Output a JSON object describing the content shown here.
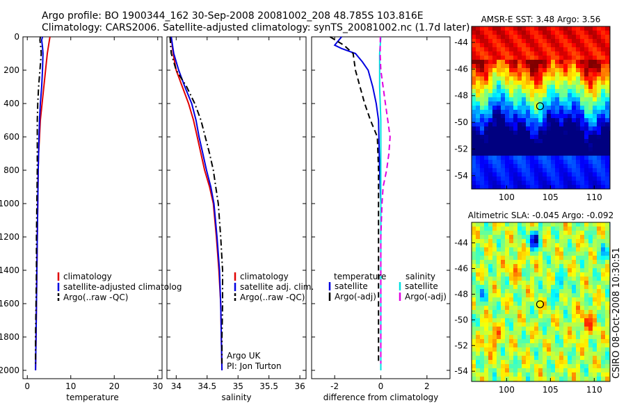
{
  "header": {
    "line1": "Argo profile: BO 1900344_162 30-Sep-2008 20081002_208 48.785S 103.816E",
    "line2": "Climatology: CARS2006. Satellite-adjusted climatology: synTS_20081002.nc (1.7d later)"
  },
  "side_label": "CSIRO 08-Oct-2008 10:30:51",
  "colors": {
    "climatology": "#e00000",
    "satellite": "#0000e0",
    "argo": "#000000",
    "satellite_salt": "#00e0e0",
    "argo_salt": "#e000e0"
  },
  "chart_data": [
    {
      "type": "line",
      "xlabel": "temperature",
      "xticks": [
        0,
        10,
        20,
        30
      ],
      "yticks": [
        0,
        200,
        400,
        600,
        800,
        1000,
        1200,
        1400,
        1600,
        1800,
        2000
      ],
      "xlim": [
        -1,
        31
      ],
      "ylim": [
        2050,
        0
      ],
      "y_reversed": true,
      "legend": [
        "climatology",
        "satellite-adjusted climatolog",
        "Argo(..raw -QC)"
      ],
      "series": [
        {
          "name": "climatology",
          "color": "#e00000",
          "style": "solid",
          "points": [
            [
              5.2,
              0
            ],
            [
              4.9,
              50
            ],
            [
              4.6,
              100
            ],
            [
              4.2,
              200
            ],
            [
              3.8,
              300
            ],
            [
              3.4,
              400
            ],
            [
              3.0,
              500
            ],
            [
              2.8,
              600
            ],
            [
              2.6,
              700
            ],
            [
              2.5,
              800
            ],
            [
              2.4,
              1000
            ],
            [
              2.3,
              1200
            ],
            [
              2.2,
              1400
            ],
            [
              2.1,
              1600
            ],
            [
              2.0,
              1800
            ],
            [
              1.9,
              2000
            ]
          ]
        },
        {
          "name": "satellite-adjusted climatolog",
          "color": "#0000e0",
          "style": "solid",
          "points": [
            [
              3.5,
              0
            ],
            [
              3.3,
              20
            ],
            [
              3.5,
              60
            ],
            [
              3.6,
              100
            ],
            [
              3.5,
              200
            ],
            [
              3.3,
              300
            ],
            [
              3.0,
              400
            ],
            [
              2.8,
              500
            ],
            [
              2.7,
              600
            ],
            [
              2.6,
              700
            ],
            [
              2.5,
              800
            ],
            [
              2.4,
              1000
            ],
            [
              2.3,
              1200
            ],
            [
              2.2,
              1400
            ],
            [
              2.1,
              1600
            ],
            [
              2.0,
              1800
            ],
            [
              1.9,
              2000
            ]
          ]
        },
        {
          "name": "Argo(..raw -QC)",
          "color": "#000000",
          "style": "dashdot",
          "points": [
            [
              3.0,
              0
            ],
            [
              2.9,
              20
            ],
            [
              3.1,
              60
            ],
            [
              3.2,
              100
            ],
            [
              2.9,
              200
            ],
            [
              2.6,
              300
            ],
            [
              2.4,
              400
            ],
            [
              2.3,
              500
            ],
            [
              2.3,
              600
            ],
            [
              2.3,
              700
            ],
            [
              2.3,
              800
            ],
            [
              2.2,
              1000
            ],
            [
              2.1,
              1200
            ],
            [
              2.1,
              1400
            ],
            [
              2.0,
              1600
            ],
            [
              1.9,
              1800
            ],
            [
              1.9,
              1960
            ]
          ]
        }
      ]
    },
    {
      "type": "line",
      "xlabel": "salinity",
      "xticks": [
        34,
        34.5,
        35,
        35.5,
        36
      ],
      "xlim": [
        33.85,
        36.1
      ],
      "ylim": [
        2050,
        0
      ],
      "y_reversed": true,
      "legend": [
        "climatology",
        "satellite adj. clim.",
        "Argo(..raw -QC)"
      ],
      "annotation": [
        "Argo UK",
        "PI: Jon Turton"
      ],
      "series": [
        {
          "name": "climatology",
          "color": "#e00000",
          "style": "solid",
          "points": [
            [
              33.92,
              0
            ],
            [
              33.95,
              100
            ],
            [
              34.0,
              200
            ],
            [
              34.1,
              300
            ],
            [
              34.2,
              400
            ],
            [
              34.28,
              500
            ],
            [
              34.34,
              600
            ],
            [
              34.4,
              700
            ],
            [
              34.46,
              800
            ],
            [
              34.54,
              900
            ],
            [
              34.6,
              1000
            ],
            [
              34.65,
              1200
            ],
            [
              34.69,
              1400
            ],
            [
              34.72,
              1600
            ],
            [
              34.73,
              1800
            ],
            [
              34.74,
              2000
            ]
          ]
        },
        {
          "name": "satellite adj. clim.",
          "color": "#0000e0",
          "style": "solid",
          "points": [
            [
              33.92,
              0
            ],
            [
              33.96,
              100
            ],
            [
              34.04,
              200
            ],
            [
              34.14,
              300
            ],
            [
              34.25,
              400
            ],
            [
              34.32,
              500
            ],
            [
              34.37,
              600
            ],
            [
              34.43,
              700
            ],
            [
              34.49,
              800
            ],
            [
              34.56,
              900
            ],
            [
              34.61,
              1000
            ],
            [
              34.66,
              1200
            ],
            [
              34.7,
              1400
            ],
            [
              34.72,
              1600
            ],
            [
              34.73,
              1800
            ],
            [
              34.74,
              2000
            ]
          ]
        },
        {
          "name": "Argo(..raw -QC)",
          "color": "#000000",
          "style": "dashdot",
          "points": [
            [
              33.9,
              0
            ],
            [
              33.92,
              100
            ],
            [
              34.0,
              200
            ],
            [
              34.17,
              300
            ],
            [
              34.3,
              400
            ],
            [
              34.4,
              500
            ],
            [
              34.47,
              600
            ],
            [
              34.54,
              700
            ],
            [
              34.6,
              800
            ],
            [
              34.64,
              900
            ],
            [
              34.68,
              1000
            ],
            [
              34.72,
              1200
            ],
            [
              34.75,
              1400
            ],
            [
              34.75,
              1600
            ],
            [
              34.74,
              1800
            ],
            [
              34.74,
              1960
            ]
          ]
        }
      ]
    },
    {
      "type": "line",
      "xlabel": "difference from climatology",
      "xticks": [
        -2,
        0,
        2
      ],
      "xlim": [
        -3.0,
        3.0
      ],
      "ylim": [
        2050,
        0
      ],
      "y_reversed": true,
      "legend_temperature": {
        "title": "temperature",
        "entries": [
          "satellite",
          "Argo(-adj)"
        ]
      },
      "legend_salinity": {
        "title": "salinity",
        "entries": [
          "satellite",
          "Argo(-adj)"
        ]
      },
      "series": [
        {
          "name": "satellite",
          "group": "temperature",
          "color": "#0000e0",
          "style": "solid",
          "points": [
            [
              -1.7,
              0
            ],
            [
              -2.0,
              50
            ],
            [
              -1.7,
              70
            ],
            [
              -1.1,
              100
            ],
            [
              -0.8,
              150
            ],
            [
              -0.55,
              200
            ],
            [
              -0.35,
              300
            ],
            [
              -0.2,
              400
            ],
            [
              -0.1,
              500
            ],
            [
              -0.05,
              800
            ],
            [
              0.0,
              1000
            ],
            [
              0.0,
              1500
            ],
            [
              0.0,
              2000
            ]
          ]
        },
        {
          "name": "Argo(-adj)",
          "group": "temperature",
          "color": "#000000",
          "style": "dashed",
          "points": [
            [
              -2.2,
              0
            ],
            [
              -1.6,
              50
            ],
            [
              -1.2,
              100
            ],
            [
              -1.1,
              200
            ],
            [
              -0.9,
              300
            ],
            [
              -0.7,
              400
            ],
            [
              -0.45,
              500
            ],
            [
              -0.15,
              600
            ],
            [
              -0.1,
              800
            ],
            [
              -0.1,
              1000
            ],
            [
              -0.1,
              1500
            ],
            [
              -0.1,
              1960
            ]
          ]
        },
        {
          "name": "satellite",
          "group": "salinity",
          "color": "#00e0e0",
          "style": "solid",
          "points": [
            [
              0.0,
              0
            ],
            [
              -0.05,
              100
            ],
            [
              -0.05,
              300
            ],
            [
              0.0,
              500
            ],
            [
              0.0,
              800
            ],
            [
              0.0,
              1200
            ],
            [
              0.0,
              2000
            ]
          ]
        },
        {
          "name": "Argo(-adj)",
          "group": "salinity",
          "color": "#e000e0",
          "style": "dashed",
          "points": [
            [
              -0.02,
              0
            ],
            [
              -0.03,
              100
            ],
            [
              0.0,
              200
            ],
            [
              0.1,
              300
            ],
            [
              0.2,
              400
            ],
            [
              0.3,
              500
            ],
            [
              0.4,
              600
            ],
            [
              0.35,
              700
            ],
            [
              0.25,
              800
            ],
            [
              0.1,
              900
            ],
            [
              0.05,
              1000
            ],
            [
              0.0,
              1200
            ],
            [
              0.0,
              1500
            ],
            [
              0.0,
              1960
            ]
          ]
        }
      ]
    },
    {
      "type": "heatmap",
      "title": "AMSR-E SST: 3.48 Argo: 3.56",
      "xticks": [
        100,
        105,
        110
      ],
      "yticks": [
        -44,
        -46,
        -48,
        -50,
        -52,
        -54
      ],
      "xlim": [
        96,
        111.8
      ],
      "ylim": [
        -55,
        -42.8
      ],
      "marker": [
        103.816,
        -48.785
      ]
    },
    {
      "type": "heatmap",
      "title": "Altimetric SLA: -0.045 Argo: -0.092",
      "xticks": [
        100,
        105,
        110
      ],
      "yticks": [
        -44,
        -46,
        -48,
        -50,
        -52,
        -54
      ],
      "xlim": [
        96,
        111.8
      ],
      "ylim": [
        -54.8,
        -42.4
      ],
      "marker": [
        103.816,
        -48.785
      ]
    }
  ]
}
